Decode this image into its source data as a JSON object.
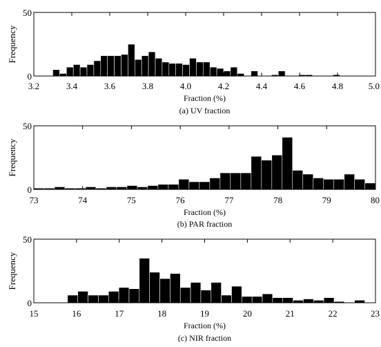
{
  "chart_data": [
    {
      "type": "bar",
      "caption": "(a) UV fraction",
      "xlabel": "Fraction (%)",
      "ylabel": "Frequency",
      "xlim": [
        3.2,
        5.0
      ],
      "ylim": [
        0,
        50
      ],
      "xticks": [
        "3.2",
        "3.4",
        "3.6",
        "3.8",
        "4.0",
        "4.2",
        "4.4",
        "4.6",
        "4.8",
        "5.0"
      ],
      "yticks": [
        "0",
        "50"
      ],
      "bin_width": 0.036,
      "bin_centers": [
        3.318,
        3.354,
        3.39,
        3.426,
        3.462,
        3.498,
        3.534,
        3.57,
        3.606,
        3.642,
        3.678,
        3.714,
        3.75,
        3.786,
        3.822,
        3.858,
        3.894,
        3.93,
        3.966,
        4.002,
        4.038,
        4.074,
        4.11,
        4.146,
        4.182,
        4.218,
        4.254,
        4.29,
        4.326,
        4.362,
        4.398,
        4.434,
        4.47,
        4.506,
        4.542,
        4.578,
        4.614,
        4.65,
        4.686,
        4.722,
        4.758,
        4.794,
        4.83,
        4.866,
        4.902,
        4.938,
        4.974
      ],
      "values": [
        5,
        2,
        7,
        9,
        7,
        9,
        12,
        16,
        16,
        16,
        17,
        25,
        13,
        16,
        19,
        14,
        11,
        10,
        10,
        9,
        14,
        11,
        11,
        7,
        6,
        4,
        7,
        2,
        0,
        4,
        0,
        0,
        1,
        4,
        0,
        0,
        1,
        1,
        0,
        0,
        0,
        1,
        0,
        0,
        0,
        0,
        0
      ]
    },
    {
      "type": "bar",
      "caption": "(b) PAR fraction",
      "xlabel": "Fraction (%)",
      "ylabel": "Frequency",
      "xlim": [
        73,
        80
      ],
      "ylim": [
        0,
        50
      ],
      "xticks": [
        "73",
        "74",
        "75",
        "76",
        "77",
        "78",
        "79",
        "80"
      ],
      "yticks": [
        "0",
        "50"
      ],
      "bin_width": 0.212,
      "bin_centers": [
        73.106,
        73.318,
        73.53,
        73.742,
        73.954,
        74.166,
        74.378,
        74.59,
        74.802,
        75.014,
        75.226,
        75.438,
        75.65,
        75.862,
        76.074,
        76.286,
        76.498,
        76.71,
        76.922,
        77.134,
        77.346,
        77.558,
        77.77,
        77.982,
        78.194,
        78.406,
        78.618,
        78.83,
        79.042,
        79.254,
        79.466,
        79.678,
        79.89
      ],
      "values": [
        1,
        1,
        2,
        1,
        1,
        2,
        1,
        2,
        2,
        3,
        2,
        3,
        4,
        4,
        8,
        6,
        6,
        9,
        13,
        13,
        13,
        26,
        23,
        27,
        41,
        15,
        12,
        9,
        8,
        8,
        12,
        8,
        5
      ]
    },
    {
      "type": "bar",
      "caption": "(c) NIR fraction",
      "xlabel": "Fraction (%)",
      "ylabel": "Frequency",
      "xlim": [
        15,
        23
      ],
      "ylim": [
        0,
        50
      ],
      "xticks": [
        "15",
        "16",
        "17",
        "18",
        "19",
        "20",
        "21",
        "22",
        "23"
      ],
      "yticks": [
        "0",
        "50"
      ],
      "bin_width": 0.24,
      "bin_centers": [
        15.91,
        16.15,
        16.39,
        16.63,
        16.87,
        17.11,
        17.35,
        17.59,
        17.83,
        18.07,
        18.31,
        18.55,
        18.79,
        19.03,
        19.27,
        19.51,
        19.75,
        19.99,
        20.23,
        20.47,
        20.71,
        20.95,
        21.19,
        21.43,
        21.67,
        21.91,
        22.15,
        22.39,
        22.63
      ],
      "values": [
        6,
        9,
        6,
        6,
        9,
        12,
        11,
        35,
        24,
        19,
        23,
        12,
        16,
        10,
        16,
        6,
        13,
        5,
        5,
        7,
        4,
        4,
        2,
        3,
        2,
        4,
        1,
        0,
        2
      ]
    }
  ]
}
